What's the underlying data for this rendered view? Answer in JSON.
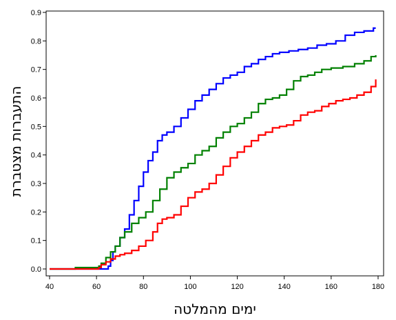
{
  "chart_data": {
    "type": "line",
    "title": "",
    "xlabel": "ימים מהמלטה",
    "ylabel": "התעברות מצטברת",
    "xlim": [
      40,
      180
    ],
    "ylim": [
      0,
      0.9
    ],
    "x_ticks": [
      40,
      60,
      80,
      100,
      120,
      140,
      160,
      180
    ],
    "y_ticks": [
      0.0,
      0.1,
      0.2,
      0.3,
      0.4,
      0.5,
      0.6,
      0.7,
      0.8,
      0.9
    ],
    "x_tick_labels": [
      "40",
      "60",
      "80",
      "100",
      "120",
      "140",
      "160",
      "180"
    ],
    "y_tick_labels": [
      "0.0",
      "0.1",
      "0.2",
      "0.3",
      "0.4",
      "0.5",
      "0.6",
      "0.7",
      "0.8",
      "0.9"
    ],
    "grid": false,
    "legend": "none",
    "step": true,
    "series": [
      {
        "color": "#0000ff",
        "points": [
          [
            40,
            0
          ],
          [
            64,
            0
          ],
          [
            65,
            0.01
          ],
          [
            66,
            0.03
          ],
          [
            67,
            0.06
          ],
          [
            68,
            0.08
          ],
          [
            70,
            0.11
          ],
          [
            72,
            0.14
          ],
          [
            74,
            0.19
          ],
          [
            76,
            0.24
          ],
          [
            78,
            0.29
          ],
          [
            80,
            0.34
          ],
          [
            82,
            0.38
          ],
          [
            84,
            0.41
          ],
          [
            86,
            0.45
          ],
          [
            88,
            0.47
          ],
          [
            90,
            0.48
          ],
          [
            93,
            0.5
          ],
          [
            96,
            0.53
          ],
          [
            99,
            0.56
          ],
          [
            102,
            0.59
          ],
          [
            105,
            0.61
          ],
          [
            108,
            0.63
          ],
          [
            111,
            0.65
          ],
          [
            114,
            0.67
          ],
          [
            117,
            0.68
          ],
          [
            120,
            0.69
          ],
          [
            123,
            0.71
          ],
          [
            126,
            0.72
          ],
          [
            129,
            0.735
          ],
          [
            132,
            0.745
          ],
          [
            135,
            0.755
          ],
          [
            138,
            0.76
          ],
          [
            142,
            0.765
          ],
          [
            146,
            0.77
          ],
          [
            150,
            0.775
          ],
          [
            154,
            0.785
          ],
          [
            158,
            0.79
          ],
          [
            162,
            0.8
          ],
          [
            166,
            0.82
          ],
          [
            170,
            0.83
          ],
          [
            174,
            0.835
          ],
          [
            178,
            0.845
          ],
          [
            179,
            0.845
          ]
        ]
      },
      {
        "color": "#008000",
        "points": [
          [
            40,
            0
          ],
          [
            50,
            0
          ],
          [
            51,
            0.005
          ],
          [
            60,
            0.005
          ],
          [
            61,
            0.01
          ],
          [
            62,
            0.02
          ],
          [
            64,
            0.04
          ],
          [
            66,
            0.06
          ],
          [
            68,
            0.08
          ],
          [
            70,
            0.11
          ],
          [
            72,
            0.13
          ],
          [
            75,
            0.16
          ],
          [
            78,
            0.18
          ],
          [
            81,
            0.2
          ],
          [
            84,
            0.24
          ],
          [
            87,
            0.28
          ],
          [
            90,
            0.32
          ],
          [
            93,
            0.34
          ],
          [
            96,
            0.355
          ],
          [
            99,
            0.37
          ],
          [
            102,
            0.4
          ],
          [
            105,
            0.415
          ],
          [
            108,
            0.43
          ],
          [
            111,
            0.46
          ],
          [
            114,
            0.48
          ],
          [
            117,
            0.5
          ],
          [
            120,
            0.51
          ],
          [
            123,
            0.53
          ],
          [
            126,
            0.55
          ],
          [
            129,
            0.58
          ],
          [
            132,
            0.595
          ],
          [
            135,
            0.6
          ],
          [
            138,
            0.61
          ],
          [
            141,
            0.63
          ],
          [
            144,
            0.66
          ],
          [
            147,
            0.675
          ],
          [
            150,
            0.68
          ],
          [
            153,
            0.69
          ],
          [
            156,
            0.7
          ],
          [
            160,
            0.705
          ],
          [
            165,
            0.71
          ],
          [
            170,
            0.72
          ],
          [
            174,
            0.73
          ],
          [
            177,
            0.745
          ],
          [
            179,
            0.75
          ]
        ]
      },
      {
        "color": "#ff0000",
        "points": [
          [
            40,
            0
          ],
          [
            60,
            0
          ],
          [
            61,
            0.005
          ],
          [
            62,
            0.015
          ],
          [
            64,
            0.025
          ],
          [
            66,
            0.035
          ],
          [
            68,
            0.045
          ],
          [
            70,
            0.05
          ],
          [
            72,
            0.055
          ],
          [
            75,
            0.065
          ],
          [
            78,
            0.08
          ],
          [
            81,
            0.1
          ],
          [
            84,
            0.13
          ],
          [
            86,
            0.16
          ],
          [
            88,
            0.175
          ],
          [
            90,
            0.18
          ],
          [
            93,
            0.19
          ],
          [
            96,
            0.22
          ],
          [
            99,
            0.25
          ],
          [
            102,
            0.27
          ],
          [
            105,
            0.28
          ],
          [
            108,
            0.3
          ],
          [
            111,
            0.33
          ],
          [
            114,
            0.36
          ],
          [
            117,
            0.39
          ],
          [
            120,
            0.41
          ],
          [
            123,
            0.43
          ],
          [
            126,
            0.45
          ],
          [
            129,
            0.47
          ],
          [
            132,
            0.48
          ],
          [
            135,
            0.495
          ],
          [
            138,
            0.5
          ],
          [
            141,
            0.505
          ],
          [
            144,
            0.52
          ],
          [
            147,
            0.54
          ],
          [
            150,
            0.55
          ],
          [
            153,
            0.555
          ],
          [
            156,
            0.57
          ],
          [
            159,
            0.58
          ],
          [
            162,
            0.59
          ],
          [
            165,
            0.595
          ],
          [
            168,
            0.6
          ],
          [
            171,
            0.61
          ],
          [
            174,
            0.62
          ],
          [
            177,
            0.64
          ],
          [
            179,
            0.665
          ]
        ]
      }
    ]
  }
}
